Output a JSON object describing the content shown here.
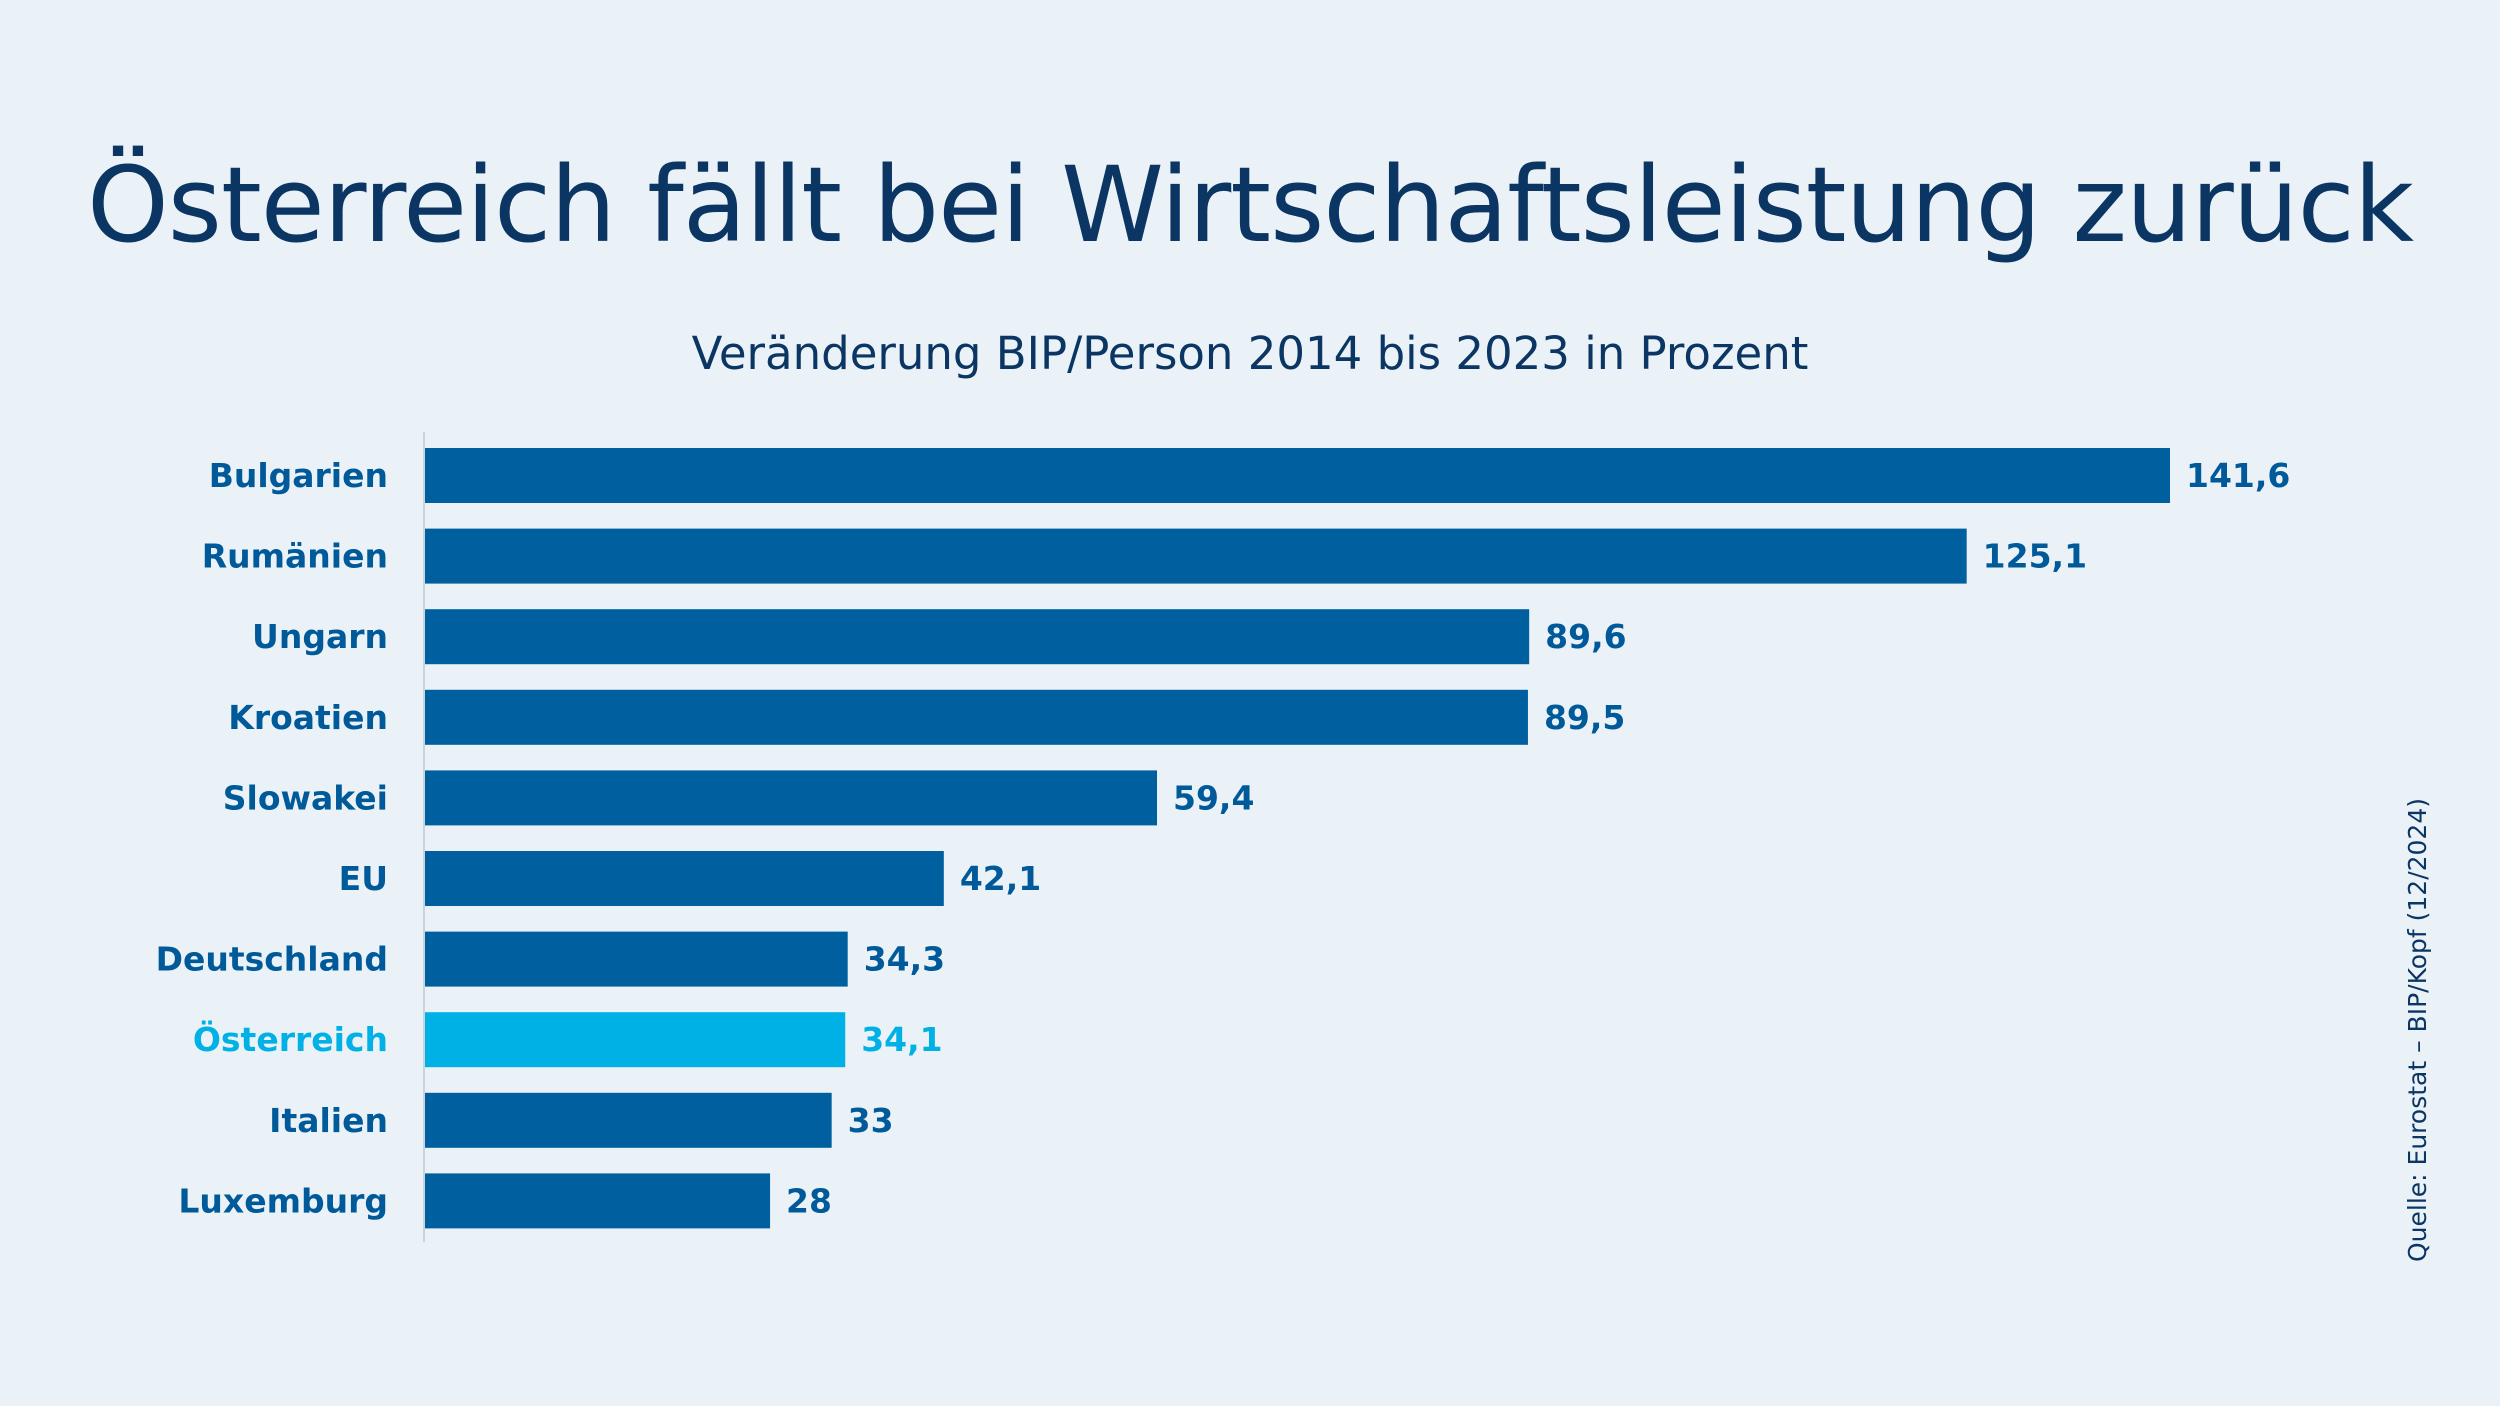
{
  "header": {
    "title": "Österreich fällt bei Wirtschaftsleistung zurück",
    "subtitle": "Veränderung BIP/Person 2014 bis 2023 in Prozent"
  },
  "footer": {
    "source": "Quelle: Eurostat – BIP/Kopf (12/2024)"
  },
  "colors": {
    "background": "#eaf2f7",
    "bar": "#00609f",
    "highlight": "#00b1e6",
    "text": "#0b3563",
    "label": "#005a9a",
    "axis": "#c8d5df"
  },
  "chart_data": {
    "type": "bar",
    "orientation": "horizontal",
    "title": "Österreich fällt bei Wirtschaftsleistung zurück",
    "subtitle": "Veränderung BIP/Person 2014 bis 2023 in Prozent",
    "categories": [
      "Bulgarien",
      "Rumänien",
      "Ungarn",
      "Kroatien",
      "Slowakei",
      "EU",
      "Deutschland",
      "Österreich",
      "Italien",
      "Luxemburg"
    ],
    "values": [
      141.6,
      125.1,
      89.6,
      89.5,
      59.4,
      42.1,
      34.3,
      34.1,
      33,
      28
    ],
    "value_labels": [
      "141,6",
      "125,1",
      "89,6",
      "89,5",
      "59,4",
      "42,1",
      "34,3",
      "34,1",
      "33",
      "28"
    ],
    "highlight": "Österreich",
    "xlim": [
      0,
      141.6
    ],
    "grid": false,
    "legend": false
  }
}
